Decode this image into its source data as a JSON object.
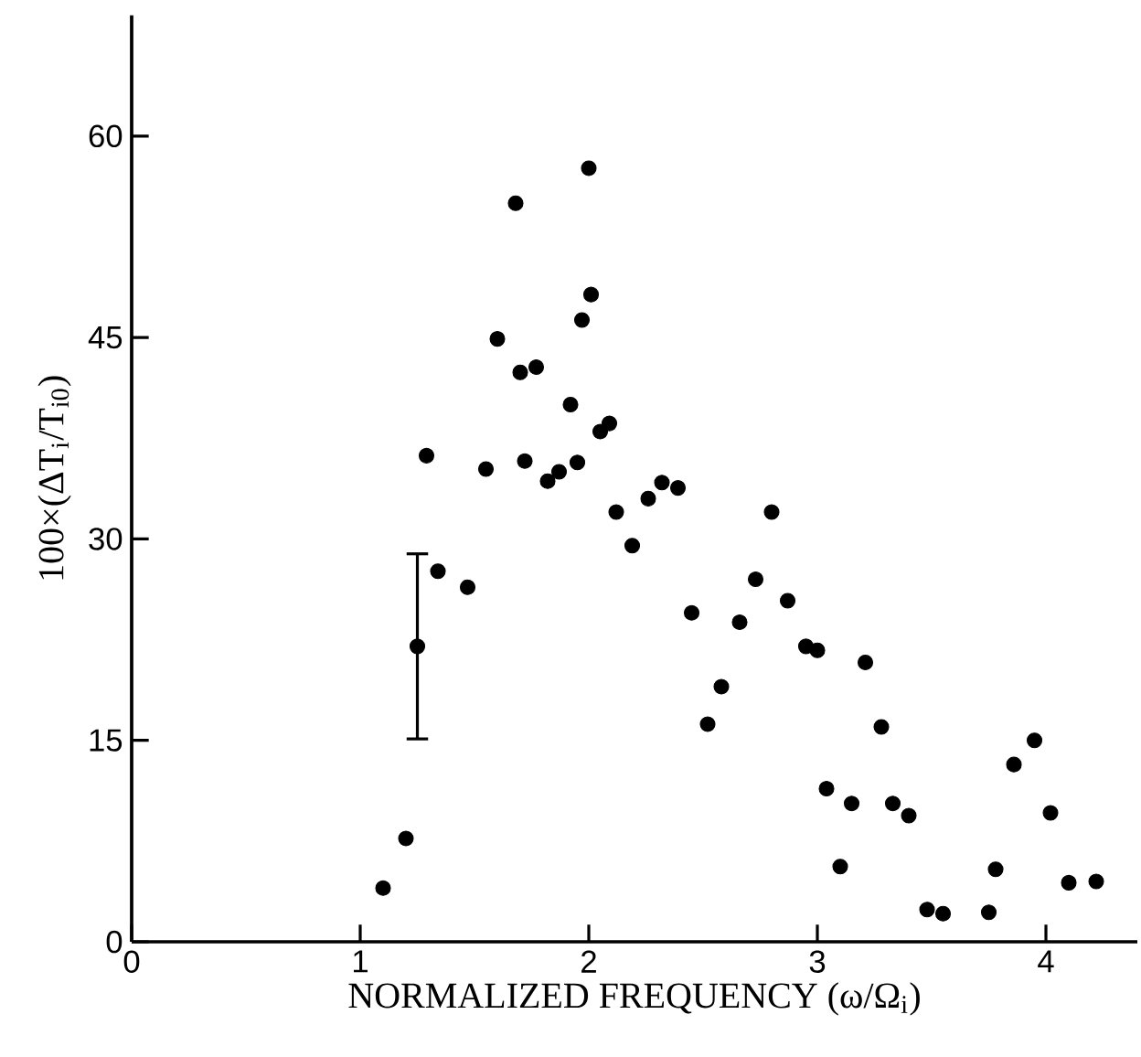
{
  "chart_data": {
    "type": "scatter",
    "xlabel": "NORMALIZED FREQUENCY (ω/Ω$_{i}$)",
    "ylabel": "100×(ΔT$_{i}$/T$_{i0}$)",
    "x": [
      1.1,
      1.2,
      1.25,
      1.29,
      1.34,
      1.47,
      1.55,
      1.6,
      1.68,
      1.7,
      1.72,
      1.77,
      1.82,
      1.87,
      1.92,
      1.95,
      1.97,
      2.0,
      2.01,
      2.05,
      2.09,
      2.12,
      2.19,
      2.26,
      2.32,
      2.39,
      2.45,
      2.52,
      2.58,
      2.66,
      2.73,
      2.8,
      2.87,
      2.95,
      3.0,
      3.04,
      3.1,
      3.15,
      3.21,
      3.28,
      3.33,
      3.4,
      3.48,
      3.55,
      3.75,
      3.78,
      3.86,
      3.95,
      4.02,
      4.1,
      4.22
    ],
    "values": [
      4.0,
      7.7,
      22,
      36.2,
      27.6,
      26.4,
      35.2,
      44.9,
      55,
      42.4,
      35.8,
      42.8,
      34.3,
      35,
      40,
      35.7,
      46.3,
      57.6,
      48.2,
      38,
      38.6,
      32,
      29.5,
      33,
      34.2,
      33.8,
      24.5,
      16.2,
      19,
      23.8,
      27,
      32,
      25.4,
      22,
      21.7,
      11.4,
      5.6,
      10.3,
      20.8,
      16,
      10.3,
      9.4,
      2.4,
      2.1,
      2.2,
      5.4,
      13.2,
      15,
      9.6,
      4.4,
      4.5
    ],
    "errors": [
      null,
      null,
      [
        15,
        29
      ],
      null,
      null,
      null,
      null,
      null,
      null,
      null,
      null,
      null,
      null,
      null,
      null,
      null,
      null,
      null,
      null,
      null,
      null,
      null,
      null,
      null,
      null,
      null,
      null,
      null,
      null,
      null,
      null,
      null,
      null,
      null,
      null,
      null,
      null,
      null,
      null,
      null,
      null,
      null,
      null,
      null,
      null,
      null,
      null,
      null,
      null,
      null,
      null
    ],
    "color": "#000000",
    "marker": "circle",
    "xlim": [
      0,
      4.4
    ],
    "ylim": [
      0,
      69
    ],
    "xticks": [
      0,
      1,
      2,
      3,
      4
    ],
    "yticks": [
      0,
      15,
      30,
      45,
      60
    ]
  }
}
